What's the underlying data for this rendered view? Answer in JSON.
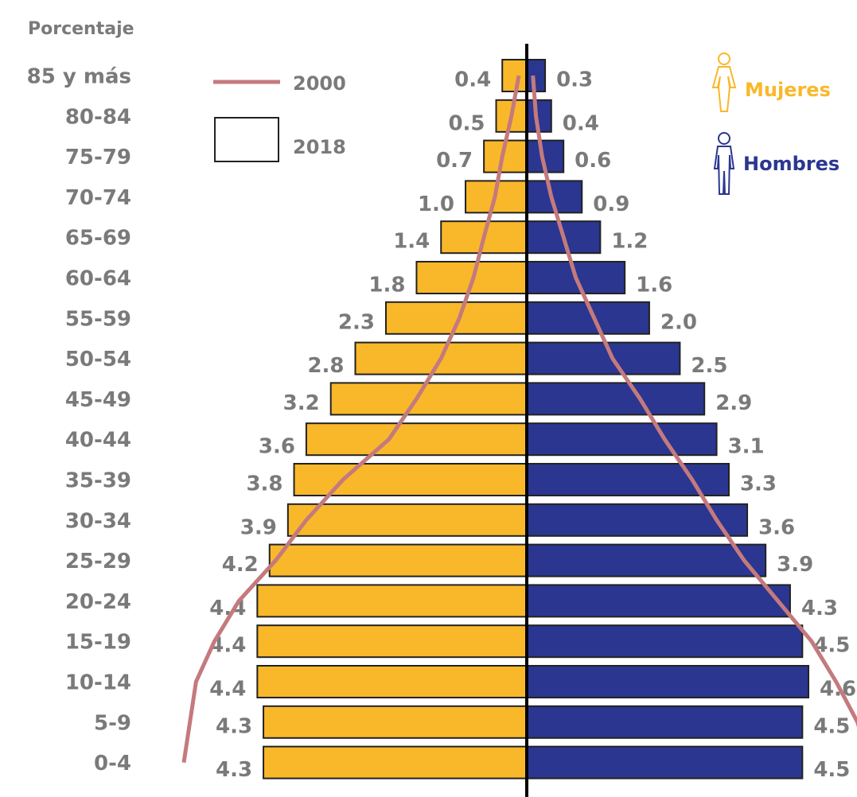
{
  "chart_data": {
    "type": "pyramid",
    "axis_label": "Porcentaje",
    "categories": [
      "85 y más",
      "80-84",
      "75-79",
      "70-74",
      "65-69",
      "60-64",
      "55-59",
      "50-54",
      "45-49",
      "40-44",
      "35-39",
      "30-34",
      "25-29",
      "20-24",
      "15-19",
      "10-14",
      "5-9",
      "0-4"
    ],
    "xlim": [
      0,
      5.6
    ],
    "bar_legend": "2018",
    "series": [
      {
        "name": "Mujeres",
        "color": "#f9b82a",
        "values": [
          0.4,
          0.5,
          0.7,
          1.0,
          1.4,
          1.8,
          2.3,
          2.8,
          3.2,
          3.6,
          3.8,
          3.9,
          4.2,
          4.4,
          4.4,
          4.4,
          4.3,
          4.3
        ],
        "value_labels": [
          "0.4",
          "0.5",
          "0.7",
          "1.0",
          "1.4",
          "1.8",
          "2.3",
          "2.8",
          "3.2",
          "3.6",
          "3.8",
          "3.9",
          "4.2",
          "4.4",
          "4.4",
          "4.4",
          "4.3",
          "4.3"
        ]
      },
      {
        "name": "Hombres",
        "color": "#2b3690",
        "values": [
          0.3,
          0.4,
          0.6,
          0.9,
          1.2,
          1.6,
          2.0,
          2.5,
          2.9,
          3.1,
          3.3,
          3.6,
          3.9,
          4.3,
          4.5,
          4.6,
          4.5,
          4.5
        ],
        "value_labels": [
          "0.3",
          "0.4",
          "0.6",
          "0.9",
          "1.2",
          "1.6",
          "2.0",
          "2.5",
          "2.9",
          "3.1",
          "3.3",
          "3.6",
          "3.9",
          "4.3",
          "4.5",
          "4.6",
          "4.5",
          "4.5"
        ]
      }
    ],
    "line": {
      "name": "2000",
      "color": "#c47a7d",
      "values_women": [
        0.13,
        0.25,
        0.4,
        0.52,
        0.7,
        0.87,
        1.1,
        1.4,
        1.8,
        2.25,
        3.0,
        3.6,
        4.1,
        4.7,
        5.1,
        5.4,
        5.5,
        5.6
      ],
      "values_men": [
        0.1,
        0.15,
        0.25,
        0.4,
        0.6,
        0.8,
        1.1,
        1.4,
        1.85,
        2.25,
        2.7,
        3.1,
        3.55,
        4.1,
        4.65,
        5.05,
        5.4,
        5.6
      ]
    }
  }
}
